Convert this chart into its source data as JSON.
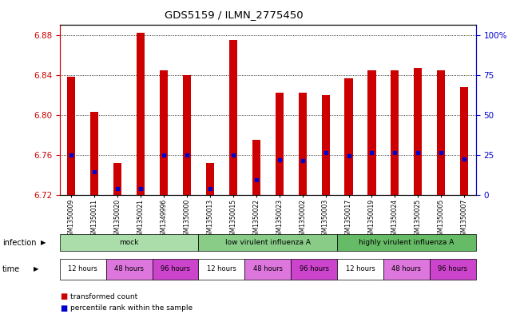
{
  "title": "GDS5159 / ILMN_2775450",
  "samples": [
    "GSM1350009",
    "GSM1350011",
    "GSM1350020",
    "GSM1350021",
    "GSM1349996",
    "GSM1350000",
    "GSM1350013",
    "GSM1350015",
    "GSM1350022",
    "GSM1350023",
    "GSM1350002",
    "GSM1350003",
    "GSM1350017",
    "GSM1350019",
    "GSM1350024",
    "GSM1350025",
    "GSM1350005",
    "GSM1350007"
  ],
  "bar_tops": [
    6.838,
    6.803,
    6.752,
    6.882,
    6.845,
    6.84,
    6.752,
    6.875,
    6.775,
    6.822,
    6.822,
    6.82,
    6.837,
    6.845,
    6.845,
    6.847,
    6.845,
    6.828
  ],
  "bar_bottoms": [
    6.72,
    6.72,
    6.72,
    6.72,
    6.72,
    6.72,
    6.72,
    6.72,
    6.72,
    6.72,
    6.72,
    6.72,
    6.72,
    6.72,
    6.72,
    6.72,
    6.72,
    6.72
  ],
  "percentile_values": [
    6.76,
    6.743,
    6.726,
    6.726,
    6.76,
    6.76,
    6.726,
    6.76,
    6.735,
    6.755,
    6.754,
    6.762,
    6.759,
    6.762,
    6.762,
    6.762,
    6.762,
    6.756
  ],
  "ylim": [
    6.72,
    6.89
  ],
  "yticks": [
    6.72,
    6.76,
    6.8,
    6.84,
    6.88
  ],
  "right_yticks": [
    0,
    25,
    50,
    75,
    100
  ],
  "bar_color": "#cc0000",
  "percentile_color": "#0000cc",
  "infection_groups": [
    {
      "label": "mock",
      "start": 0,
      "end": 6,
      "color": "#aaddaa"
    },
    {
      "label": "low virulent influenza A",
      "start": 6,
      "end": 12,
      "color": "#88cc88"
    },
    {
      "label": "highly virulent influenza A",
      "start": 12,
      "end": 18,
      "color": "#66bb66"
    }
  ],
  "time_groups": [
    {
      "label": "12 hours",
      "start": 0,
      "end": 2,
      "color": "#ffffff"
    },
    {
      "label": "48 hours",
      "start": 2,
      "end": 4,
      "color": "#dd77dd"
    },
    {
      "label": "96 hours",
      "start": 4,
      "end": 6,
      "color": "#cc44cc"
    },
    {
      "label": "12 hours",
      "start": 6,
      "end": 8,
      "color": "#ffffff"
    },
    {
      "label": "48 hours",
      "start": 8,
      "end": 10,
      "color": "#dd77dd"
    },
    {
      "label": "96 hours",
      "start": 10,
      "end": 12,
      "color": "#cc44cc"
    },
    {
      "label": "12 hours",
      "start": 12,
      "end": 14,
      "color": "#ffffff"
    },
    {
      "label": "48 hours",
      "start": 14,
      "end": 16,
      "color": "#dd77dd"
    },
    {
      "label": "96 hours",
      "start": 16,
      "end": 18,
      "color": "#cc44cc"
    }
  ],
  "left_tick_color": "#cc0000",
  "right_tick_color": "#0000cc"
}
